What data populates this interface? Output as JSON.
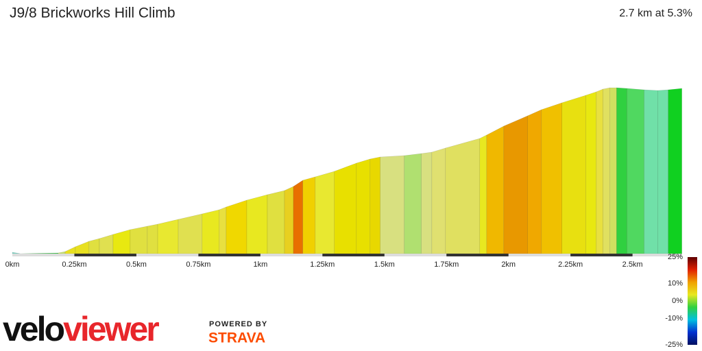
{
  "chart_data": {
    "type": "elevation-profile",
    "title": "J9/8 Brickworks Hill Climb",
    "subtitle": "2.7 km at 5.3%",
    "x": [
      0,
      0.033,
      0.185,
      0.213,
      0.254,
      0.309,
      0.351,
      0.406,
      0.475,
      0.544,
      0.586,
      0.669,
      0.765,
      0.834,
      0.862,
      0.945,
      1.028,
      1.097,
      1.133,
      1.171,
      1.221,
      1.298,
      1.387,
      1.442,
      1.483,
      1.58,
      1.649,
      1.691,
      1.746,
      1.884,
      1.912,
      1.981,
      2.077,
      2.133,
      2.215,
      2.312,
      2.354,
      2.381,
      2.409,
      2.436,
      2.478,
      2.547,
      2.602,
      2.644,
      2.699
    ],
    "values": [
      1.2,
      0,
      0.6,
      1.8,
      6,
      10.8,
      13.2,
      16.8,
      21,
      24,
      25.8,
      30,
      34.8,
      38.4,
      40.8,
      46.8,
      51.6,
      55.2,
      58.8,
      64.2,
      67.2,
      72,
      79.2,
      82.8,
      84.6,
      85.8,
      87.6,
      88.8,
      92.4,
      100.8,
      103.8,
      111.6,
      120.6,
      126,
      132,
      138.6,
      141.6,
      144,
      145.2,
      145.2,
      144.6,
      143.4,
      142.8,
      143.4,
      144.6
    ],
    "segment_colors": [
      "#7fd6c6",
      "#3cc84a",
      "#c8e070",
      "#e8e020",
      "#e8e020",
      "#e0e040",
      "#e0e050",
      "#e8e810",
      "#e0e040",
      "#e0e040",
      "#e8e830",
      "#e0e050",
      "#e8e820",
      "#e8e040",
      "#f0d800",
      "#e8e820",
      "#e0e040",
      "#e8d020",
      "#e87000",
      "#f0d000",
      "#e8e830",
      "#e8e000",
      "#e8e000",
      "#e8d800",
      "#d8e080",
      "#b0e070",
      "#d8e080",
      "#e0e070",
      "#e0e060",
      "#e8e820",
      "#f0b800",
      "#e89800",
      "#f0a800",
      "#f0c000",
      "#e8e010",
      "#e8e810",
      "#e8e040",
      "#e0e060",
      "#d0e060",
      "#30d040",
      "#50d860",
      "#70e0a8",
      "#70e0a8",
      "#10d020"
    ],
    "xlim": [
      0,
      2.7
    ],
    "ylim": [
      0,
      150
    ],
    "xticks": [
      {
        "value": 0,
        "label": "0km"
      },
      {
        "value": 0.25,
        "label": "0.25km"
      },
      {
        "value": 0.5,
        "label": "0.5km"
      },
      {
        "value": 0.75,
        "label": "0.75km"
      },
      {
        "value": 1,
        "label": "1km"
      },
      {
        "value": 1.25,
        "label": "1.25km"
      },
      {
        "value": 1.5,
        "label": "1.5km"
      },
      {
        "value": 1.75,
        "label": "1.75km"
      },
      {
        "value": 2,
        "label": "2km"
      },
      {
        "value": 2.25,
        "label": "2.25km"
      },
      {
        "value": 2.5,
        "label": "2.5km"
      }
    ],
    "colorbar": {
      "lim": [
        -25,
        25
      ],
      "ticks": [
        {
          "value": 25,
          "label": "25%"
        },
        {
          "value": 10,
          "label": "10%"
        },
        {
          "value": 0,
          "label": "0%"
        },
        {
          "value": -10,
          "label": "-10%"
        },
        {
          "value": -25,
          "label": "-25%"
        }
      ],
      "colors": [
        "#001060",
        "#0030d0",
        "#00c0e0",
        "#30d040",
        "#e8e820",
        "#f0a000",
        "#e02000",
        "#600000"
      ]
    }
  },
  "logo": {
    "part1": "velo",
    "part2": "viewer",
    "powered": "POWERED BY",
    "brand": "STRAVA"
  }
}
